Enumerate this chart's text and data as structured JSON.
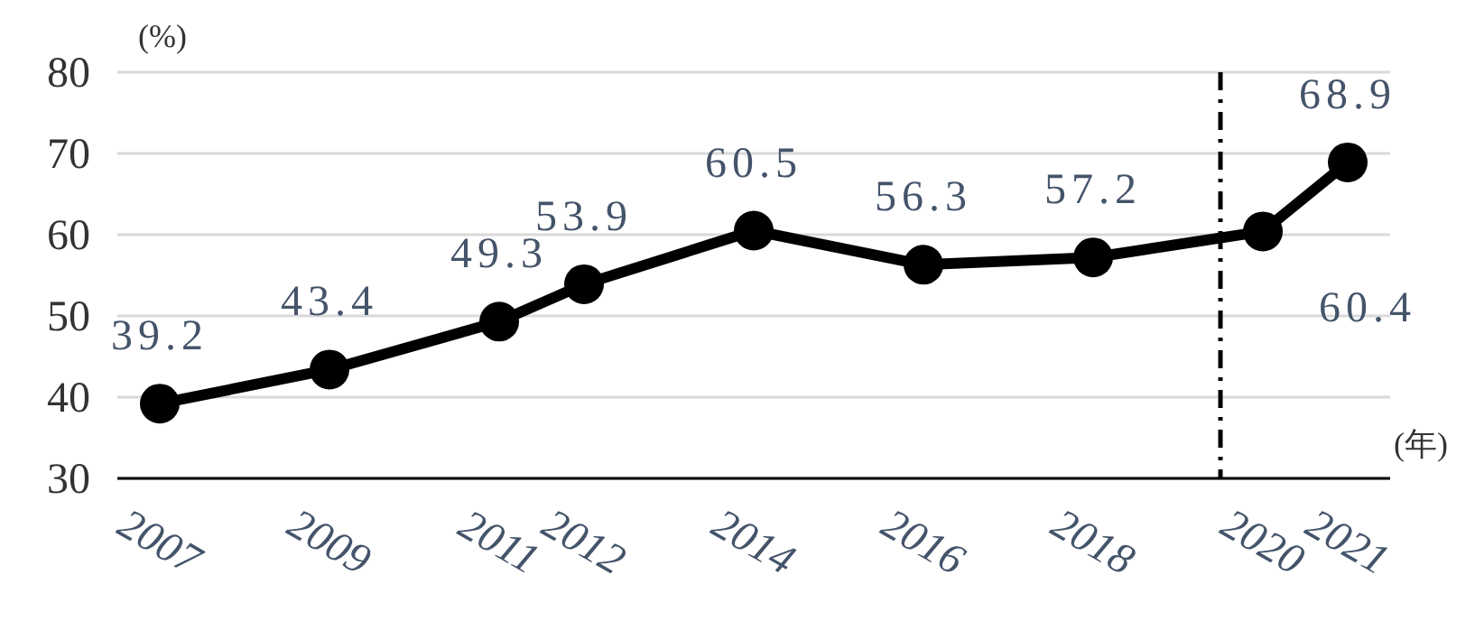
{
  "chart_data": {
    "type": "line",
    "ylabel": "(%)",
    "xlabel": "(年)",
    "x": [
      2007,
      2009,
      2011,
      2012,
      2014,
      2016,
      2018,
      2020,
      2021
    ],
    "series": [
      {
        "color": "#000000",
        "values": [
          39.2,
          43.4,
          49.3,
          53.9,
          60.5,
          56.3,
          57.2,
          60.4,
          68.9
        ]
      }
    ],
    "xlim": [
      2006.5,
      2021.5
    ],
    "xticks": [
      2007,
      2009,
      2011,
      2012,
      2014,
      2016,
      2018,
      2020,
      2021
    ],
    "ylim": [
      30,
      80
    ],
    "yticks": [
      30,
      40,
      50,
      60,
      70,
      80
    ],
    "grid": "y",
    "marker": "circle",
    "line_style": "solid",
    "data_labels": true,
    "ref_lines": [
      {
        "axis": "x",
        "value": 2019.5,
        "line_style": "dashdot",
        "color": "#000000"
      }
    ]
  }
}
